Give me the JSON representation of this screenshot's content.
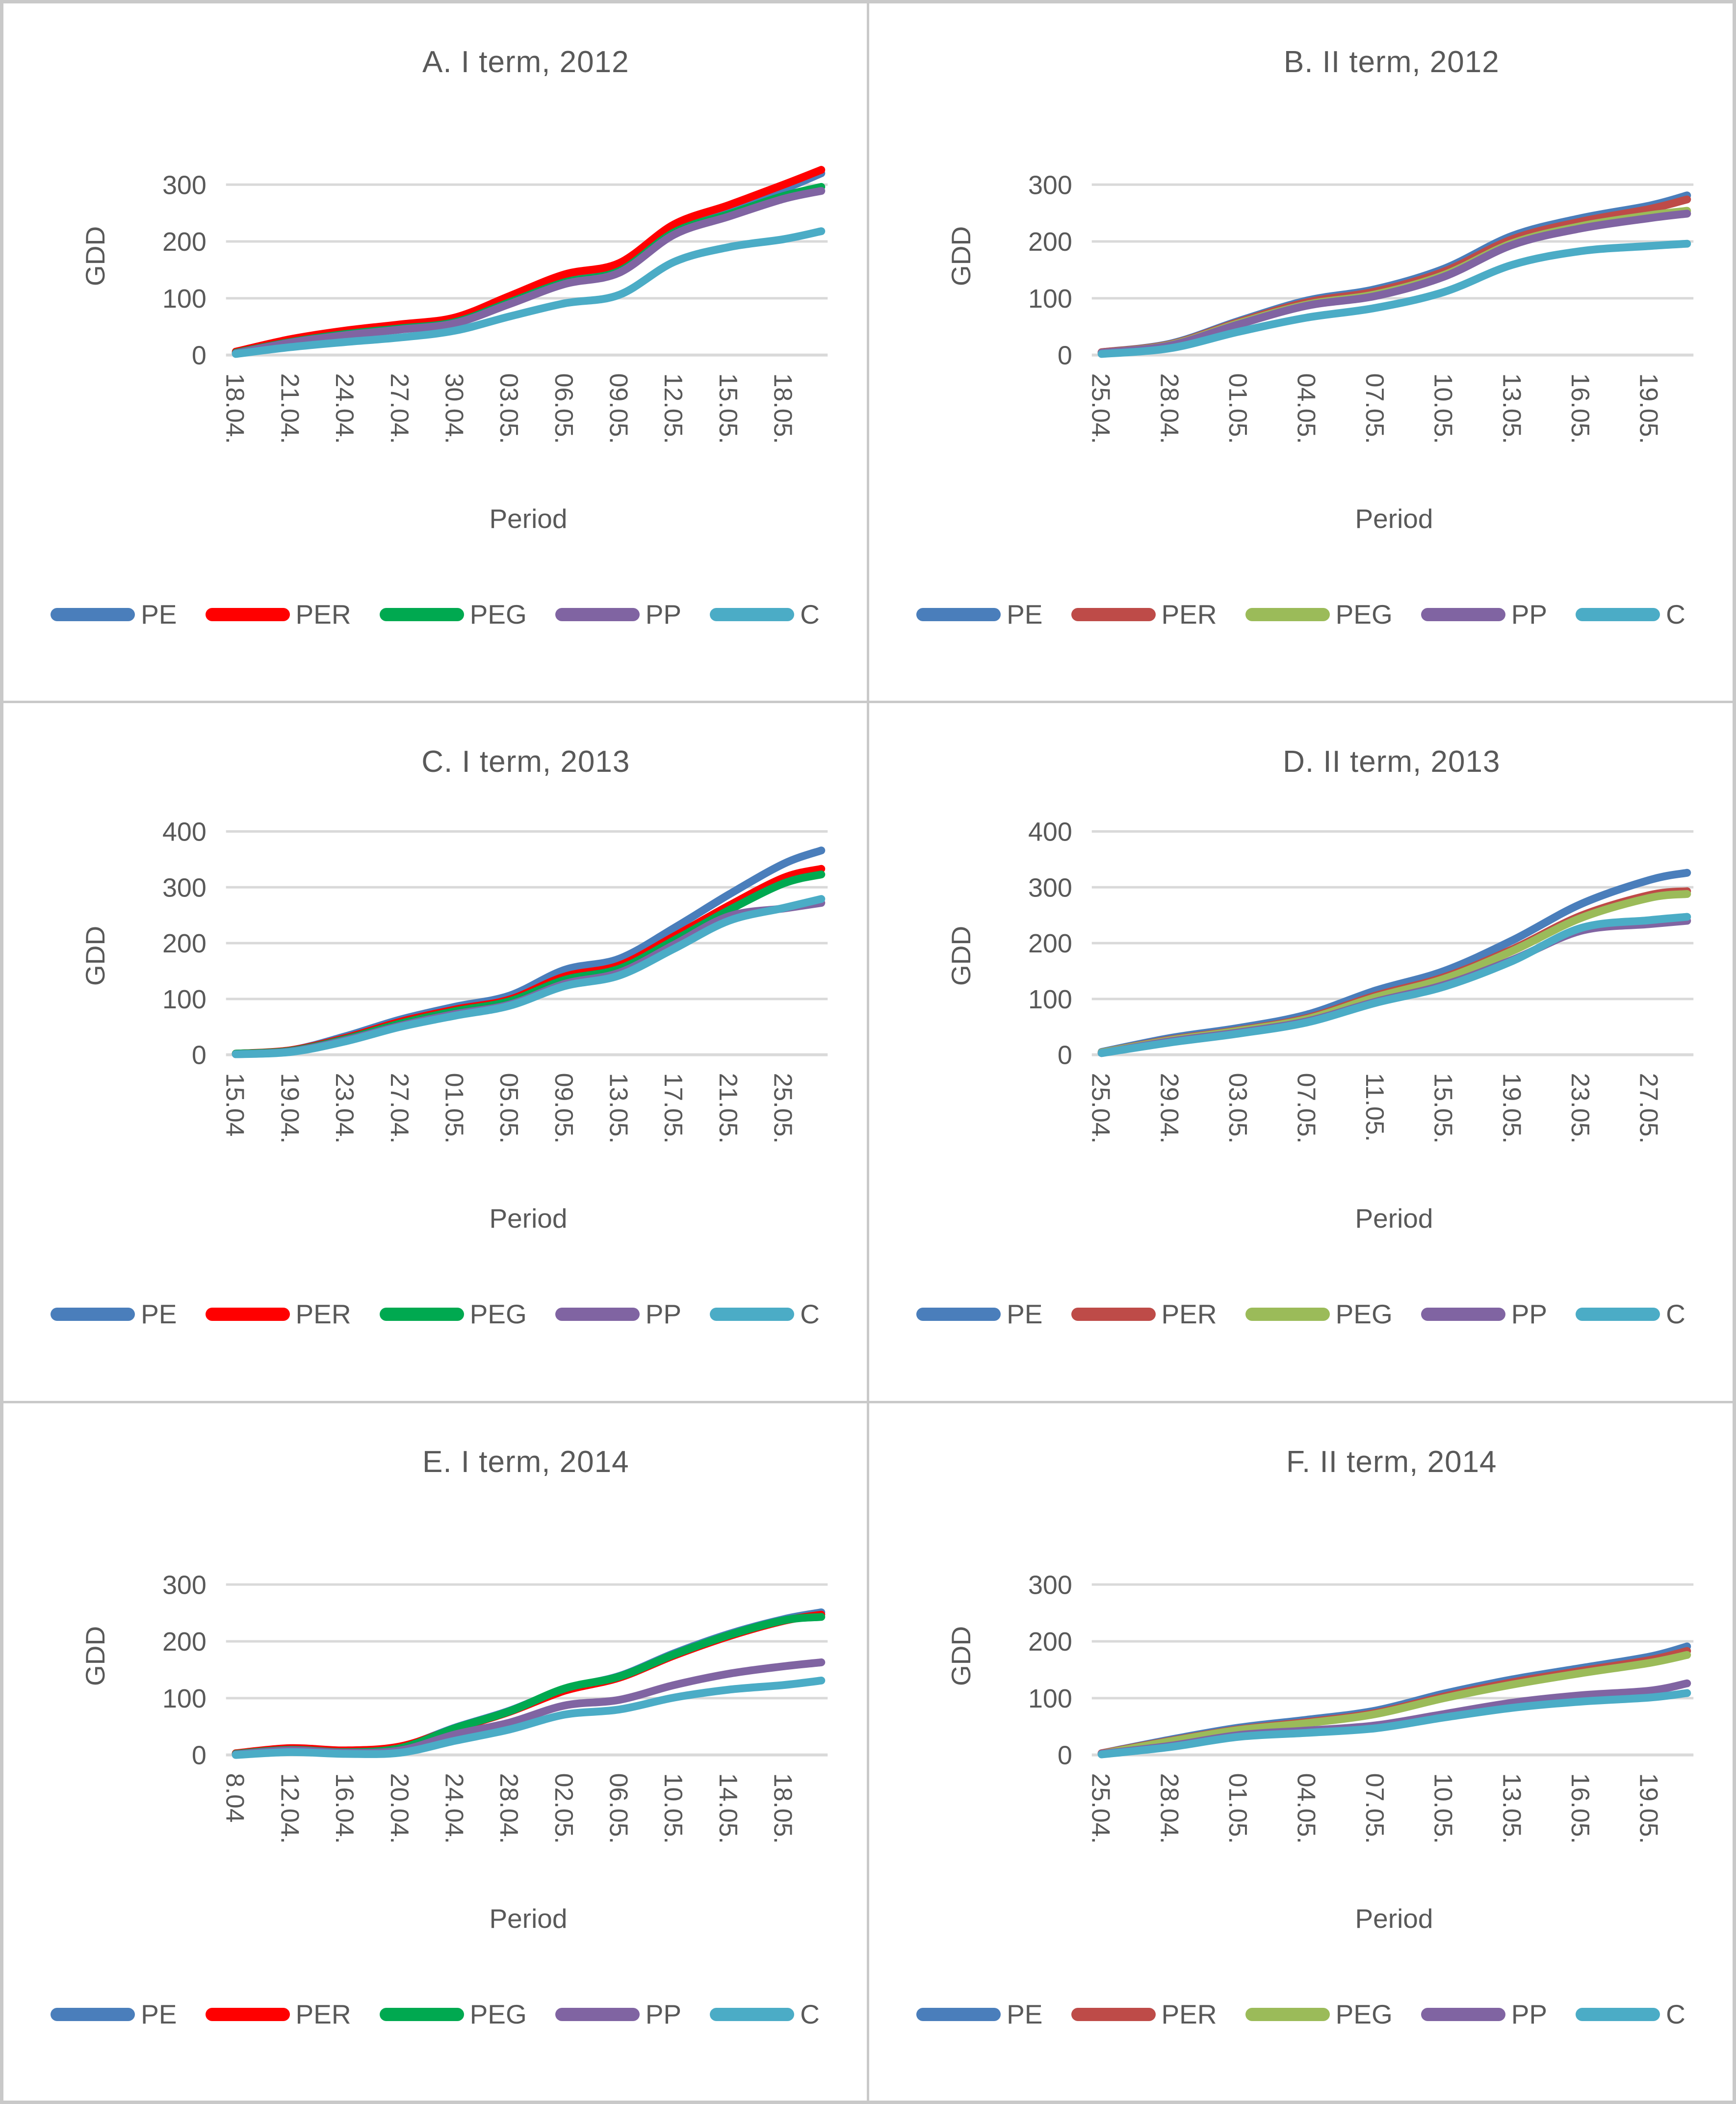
{
  "page": {
    "background": "#ffffff",
    "frame_color": "#c9c9c9",
    "text_color": "#595959",
    "gridline_color": "#d9d9d9"
  },
  "chart_data": [
    {
      "id": "A",
      "type": "line",
      "title": "A. I term, 2012",
      "y_axis_title": "GDD",
      "x_axis_title": "Period",
      "grid": true,
      "legend_position": "bottom",
      "ylim": [
        0,
        350
      ],
      "y_ticks": [
        0,
        100,
        200,
        300
      ],
      "x_labels": [
        "18.04.",
        "21.04.",
        "24.04.",
        "27.04.",
        "30.04.",
        "03.05.",
        "06.05.",
        "09.05.",
        "12.05.",
        "15.05.",
        "18.05."
      ],
      "sampling_note": "values sampled at each x label plus one trailing point at right edge of plot",
      "series": [
        {
          "name": "PE",
          "color": "#4a7ebb",
          "values": [
            4,
            24,
            38,
            48,
            60,
            96,
            132,
            152,
            222,
            256,
            292,
            320
          ]
        },
        {
          "name": "PER",
          "color": "#ff0000",
          "values": [
            6,
            28,
            43,
            54,
            66,
            104,
            142,
            162,
            230,
            264,
            300,
            326
          ]
        },
        {
          "name": "PEG",
          "color": "#00a950",
          "values": [
            4,
            23,
            37,
            47,
            58,
            93,
            128,
            148,
            216,
            248,
            280,
            296
          ]
        },
        {
          "name": "PP",
          "color": "#8064a2",
          "values": [
            3,
            22,
            35,
            45,
            56,
            90,
            125,
            145,
            212,
            244,
            275,
            289
          ]
        },
        {
          "name": "C",
          "color": "#4bacc6",
          "values": [
            2,
            14,
            23,
            31,
            43,
            68,
            91,
            106,
            164,
            190,
            204,
            218
          ]
        }
      ]
    },
    {
      "id": "B",
      "type": "line",
      "title": "B. II term, 2012",
      "y_axis_title": "GDD",
      "x_axis_title": "Period",
      "grid": true,
      "legend_position": "bottom",
      "ylim": [
        0,
        350
      ],
      "y_ticks": [
        0,
        100,
        200,
        300
      ],
      "x_labels": [
        "25.04.",
        "28.04.",
        "01.05.",
        "04.05.",
        "07.05.",
        "10.05.",
        "13.05.",
        "16.05.",
        "19.05."
      ],
      "sampling_note": "values sampled at each x label plus one trailing point at right edge of plot",
      "series": [
        {
          "name": "PE",
          "color": "#4a7ebb",
          "values": [
            5,
            20,
            60,
            96,
            116,
            152,
            210,
            241,
            263,
            281
          ]
        },
        {
          "name": "PER",
          "color": "#be4b48",
          "values": [
            5,
            19,
            58,
            93,
            112,
            147,
            204,
            235,
            257,
            274
          ]
        },
        {
          "name": "PEG",
          "color": "#9bbb59",
          "values": [
            4,
            18,
            56,
            89,
            107,
            141,
            197,
            227,
            246,
            254
          ]
        },
        {
          "name": "PP",
          "color": "#8064a2",
          "values": [
            4,
            17,
            54,
            87,
            104,
            138,
            194,
            223,
            241,
            249
          ]
        },
        {
          "name": "C",
          "color": "#4bacc6",
          "values": [
            2,
            12,
            41,
            66,
            83,
            111,
            159,
            183,
            192,
            196
          ]
        }
      ]
    },
    {
      "id": "C",
      "type": "line",
      "title": "C. I term, 2013",
      "y_axis_title": "GDD",
      "x_axis_title": "Period",
      "grid": true,
      "legend_position": "bottom",
      "ylim": [
        0,
        430
      ],
      "y_ticks": [
        0,
        100,
        200,
        300,
        400
      ],
      "x_labels": [
        "15.04",
        "19.04.",
        "23.04.",
        "27.04.",
        "01.05.",
        "05.05.",
        "09.05.",
        "13.05.",
        "17.05.",
        "21.05.",
        "25.05."
      ],
      "sampling_note": "values sampled at each x label plus one trailing point at right edge of plot",
      "series": [
        {
          "name": "PE",
          "color": "#4a7ebb",
          "values": [
            2,
            8,
            33,
            63,
            86,
            106,
            152,
            172,
            227,
            287,
            342,
            366
          ]
        },
        {
          "name": "PER",
          "color": "#ff0000",
          "values": [
            2,
            8,
            30,
            59,
            81,
            99,
            140,
            160,
            212,
            267,
            317,
            333
          ]
        },
        {
          "name": "PEG",
          "color": "#00a950",
          "values": [
            2,
            7,
            28,
            56,
            78,
            96,
            134,
            154,
            205,
            259,
            307,
            323
          ]
        },
        {
          "name": "PP",
          "color": "#8064a2",
          "values": [
            1,
            6,
            26,
            52,
            73,
            90,
            127,
            147,
            197,
            248,
            262,
            272
          ]
        },
        {
          "name": "C",
          "color": "#4bacc6",
          "values": [
            1,
            5,
            24,
            50,
            70,
            88,
            123,
            142,
            190,
            240,
            263,
            279
          ]
        }
      ]
    },
    {
      "id": "D",
      "type": "line",
      "title": "D. II term, 2013",
      "y_axis_title": "GDD",
      "x_axis_title": "Period",
      "grid": true,
      "legend_position": "bottom",
      "ylim": [
        0,
        430
      ],
      "y_ticks": [
        0,
        100,
        200,
        300,
        400
      ],
      "x_labels": [
        "25.04.",
        "29.04.",
        "03.05.",
        "07.05.",
        "11.05.",
        "15.05.",
        "19.05.",
        "23.05.",
        "27.05."
      ],
      "sampling_note": "values sampled at each x label plus one trailing point at right edge of plot",
      "series": [
        {
          "name": "PE",
          "color": "#4a7ebb",
          "values": [
            5,
            30,
            48,
            72,
            115,
            150,
            205,
            270,
            313,
            326
          ]
        },
        {
          "name": "PER",
          "color": "#be4b48",
          "values": [
            4,
            27,
            44,
            66,
            106,
            139,
            189,
            249,
            286,
            293
          ]
        },
        {
          "name": "PEG",
          "color": "#9bbb59",
          "values": [
            4,
            26,
            43,
            64,
            103,
            136,
            186,
            245,
            281,
            288
          ]
        },
        {
          "name": "PP",
          "color": "#8064a2",
          "values": [
            3,
            24,
            40,
            60,
            95,
            125,
            170,
            222,
            234,
            240
          ]
        },
        {
          "name": "C",
          "color": "#4bacc6",
          "values": [
            3,
            22,
            38,
            58,
            93,
            122,
            168,
            227,
            241,
            247
          ]
        }
      ]
    },
    {
      "id": "E",
      "type": "line",
      "title": "E. I term, 2014",
      "y_axis_title": "GDD",
      "x_axis_title": "Period",
      "grid": true,
      "legend_position": "bottom",
      "ylim": [
        0,
        350
      ],
      "y_ticks": [
        0,
        100,
        200,
        300
      ],
      "x_labels": [
        "8.04",
        "12.04.",
        "16.04.",
        "20.04.",
        "24.04.",
        "28.04.",
        "02.05.",
        "06.05.",
        "10.05.",
        "14.05.",
        "18.05."
      ],
      "sampling_note": "values sampled at each x label plus one trailing point at right edge of plot",
      "series": [
        {
          "name": "PE",
          "color": "#4a7ebb",
          "values": [
            2,
            10,
            6,
            14,
            48,
            78,
            116,
            139,
            179,
            213,
            239,
            251
          ]
        },
        {
          "name": "PER",
          "color": "#ff0000",
          "values": [
            3,
            12,
            8,
            15,
            46,
            76,
            113,
            136,
            175,
            209,
            236,
            247
          ]
        },
        {
          "name": "PEG",
          "color": "#00a950",
          "values": [
            2,
            9,
            5,
            12,
            47,
            77,
            117,
            138,
            177,
            211,
            237,
            243
          ]
        },
        {
          "name": "PP",
          "color": "#8064a2",
          "values": [
            1,
            8,
            4,
            8,
            36,
            57,
            87,
            97,
            123,
            143,
            156,
            163
          ]
        },
        {
          "name": "C",
          "color": "#4bacc6",
          "values": [
            0,
            5,
            2,
            4,
            25,
            45,
            71,
            80,
            101,
            115,
            123,
            131
          ]
        }
      ]
    },
    {
      "id": "F",
      "type": "line",
      "title": "F. II term, 2014",
      "y_axis_title": "GDD",
      "x_axis_title": "Period",
      "grid": true,
      "legend_position": "bottom",
      "ylim": [
        0,
        350
      ],
      "y_ticks": [
        0,
        100,
        200,
        300
      ],
      "x_labels": [
        "25.04.",
        "28.04.",
        "01.05.",
        "04.05.",
        "07.05.",
        "10.05.",
        "13.05.",
        "16.05.",
        "19.05."
      ],
      "sampling_note": "values sampled at each x label plus one trailing point at right edge of plot",
      "series": [
        {
          "name": "PE",
          "color": "#4a7ebb",
          "values": [
            3,
            27,
            48,
            62,
            78,
            108,
            133,
            153,
            173,
            191
          ]
        },
        {
          "name": "PER",
          "color": "#be4b48",
          "values": [
            3,
            25,
            45,
            58,
            74,
            103,
            128,
            148,
            167,
            183
          ]
        },
        {
          "name": "PEG",
          "color": "#9bbb59",
          "values": [
            2,
            24,
            44,
            56,
            72,
            100,
            124,
            144,
            162,
            176
          ]
        },
        {
          "name": "PP",
          "color": "#8064a2",
          "values": [
            2,
            16,
            35,
            43,
            52,
            72,
            92,
            105,
            113,
            126
          ]
        },
        {
          "name": "C",
          "color": "#4bacc6",
          "values": [
            1,
            14,
            32,
            39,
            47,
            66,
            83,
            94,
            101,
            109
          ]
        }
      ]
    }
  ]
}
